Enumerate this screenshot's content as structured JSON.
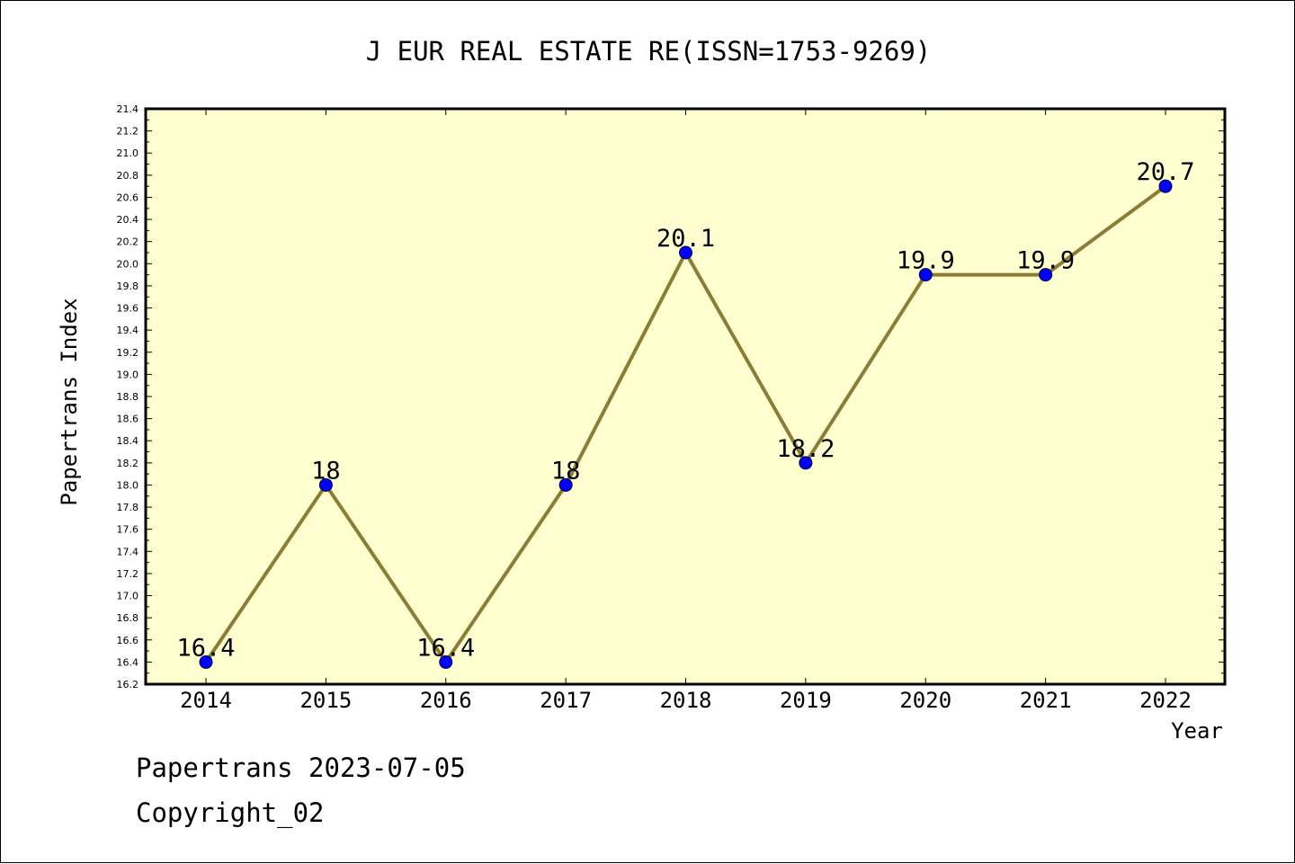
{
  "chart_data": {
    "type": "line",
    "title": "J EUR REAL ESTATE RE(ISSN=1753-9269)",
    "xlabel": "Year",
    "ylabel": "Papertrans Index",
    "categories": [
      "2014",
      "2015",
      "2016",
      "2017",
      "2018",
      "2019",
      "2020",
      "2021",
      "2022"
    ],
    "series": [
      {
        "values": [
          16.4,
          18,
          16.4,
          18,
          20.1,
          18.2,
          19.9,
          19.9,
          20.7
        ],
        "data_labels": [
          "16.4",
          "18",
          "16.4",
          "18",
          "20.1",
          "18.2",
          "19.9",
          "19.9",
          "20.7"
        ]
      }
    ],
    "ylim": [
      16.2,
      21.4
    ],
    "yticks": [
      "16.2",
      "16.4",
      "16.6",
      "16.8",
      "17.0",
      "17.2",
      "17.4",
      "17.6",
      "17.8",
      "18.0",
      "18.2",
      "18.4",
      "18.6",
      "18.8",
      "19.0",
      "19.2",
      "19.4",
      "19.6",
      "19.8",
      "20.0",
      "20.2",
      "20.4",
      "20.6",
      "20.8",
      "21.0",
      "21.2",
      "21.4"
    ],
    "grid": false,
    "colors": {
      "plot_background": "#ffffd0",
      "line": "#8b7d35",
      "marker": "#0000ff"
    }
  },
  "footer": {
    "date_line": "Papertrans 2023-07-05",
    "copyright": "Copyright_02"
  }
}
